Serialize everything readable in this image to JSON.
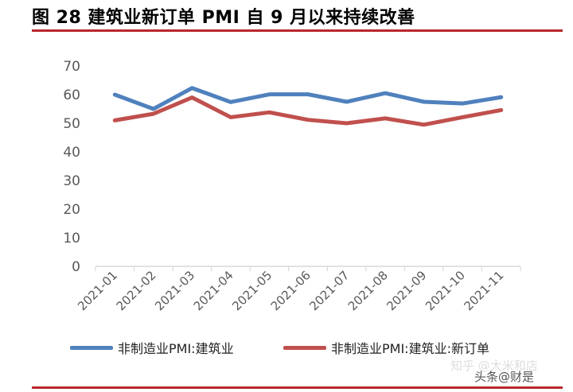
{
  "figure_title": "图 28 建筑业新订单 PMI 自 9 月以来持续改善",
  "colors": {
    "accent": "#b8272c",
    "series_blue": "#4f81bd",
    "series_red": "#c0504d",
    "axis": "#d9d9d9"
  },
  "chart_data": {
    "type": "line",
    "title": "",
    "xlabel": "",
    "ylabel": "",
    "categories": [
      "2021-01",
      "2021-02",
      "2021-03",
      "2021-04",
      "2021-05",
      "2021-06",
      "2021-07",
      "2021-08",
      "2021-09",
      "2021-10",
      "2021-11"
    ],
    "yticks": [
      "0",
      "10",
      "20",
      "30",
      "40",
      "50",
      "60",
      "70"
    ],
    "ylim": [
      0,
      70
    ],
    "grid": false,
    "legend_position": "bottom",
    "series": [
      {
        "name": "非制造业PMI:建筑业",
        "color": "#4f81bd",
        "values": [
          60.0,
          55.0,
          62.3,
          57.4,
          60.1,
          60.1,
          57.5,
          60.5,
          57.5,
          56.9,
          59.1
        ]
      },
      {
        "name": "非制造业PMI:建筑业:新订单",
        "color": "#c0504d",
        "values": [
          51.0,
          53.3,
          59.0,
          52.1,
          53.8,
          51.2,
          50.0,
          51.7,
          49.5,
          52.1,
          54.6
        ]
      }
    ]
  },
  "watermark": {
    "line1": "知乎 @大米和店",
    "line2": "头条@财是"
  }
}
